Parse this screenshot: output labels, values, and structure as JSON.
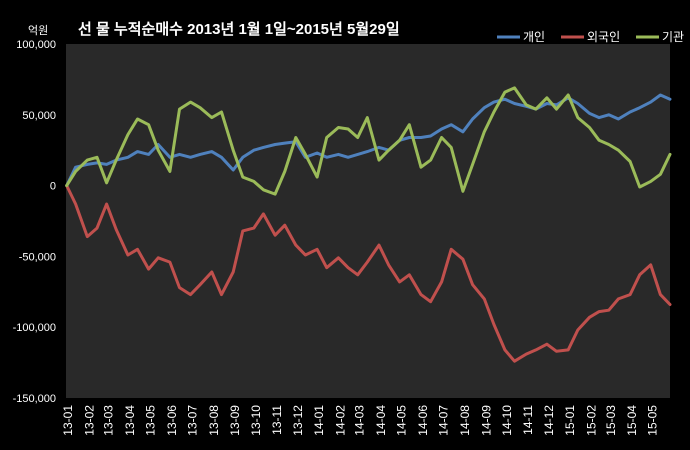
{
  "chart_data": {
    "type": "line",
    "title": "선 물 누적순매수 2013년 1월 1일~2015년 5월29일",
    "xlabel": "",
    "ylabel": "억원",
    "ylim": [
      -150000,
      100000
    ],
    "yticks": [
      100000,
      50000,
      0,
      -50000,
      -100000,
      -150000
    ],
    "ytick_labels": [
      "100,000",
      "50,000",
      "0",
      "-50,000",
      "-100,000",
      "-150,000"
    ],
    "xlim": [
      "2013-01-01",
      "2015-05-29"
    ],
    "xtick_labels": [
      "13-01",
      "13-02",
      "13-03",
      "13-04",
      "13-05",
      "13-06",
      "13-07",
      "13-08",
      "13-09",
      "13-10",
      "13-11",
      "13-12",
      "14-01",
      "14-02",
      "14-03",
      "14-04",
      "14-05",
      "14-06",
      "14-07",
      "14-08",
      "14-09",
      "14-10",
      "14-11",
      "14-12",
      "15-01",
      "15-02",
      "15-03",
      "15-04",
      "15-05"
    ],
    "grid": false,
    "legend_position": "top-right",
    "x": [
      "2013-01-02",
      "2013-01-15",
      "2013-02-01",
      "2013-02-15",
      "2013-03-01",
      "2013-03-15",
      "2013-04-01",
      "2013-04-15",
      "2013-05-01",
      "2013-05-15",
      "2013-06-01",
      "2013-06-15",
      "2013-07-01",
      "2013-07-15",
      "2013-08-01",
      "2013-08-15",
      "2013-09-01",
      "2013-09-15",
      "2013-10-01",
      "2013-10-15",
      "2013-11-01",
      "2013-11-15",
      "2013-12-01",
      "2013-12-15",
      "2014-01-01",
      "2014-01-15",
      "2014-02-01",
      "2014-02-15",
      "2014-03-01",
      "2014-03-15",
      "2014-04-01",
      "2014-04-15",
      "2014-05-01",
      "2014-05-15",
      "2014-06-01",
      "2014-06-15",
      "2014-07-01",
      "2014-07-15",
      "2014-08-01",
      "2014-08-15",
      "2014-09-01",
      "2014-09-15",
      "2014-10-01",
      "2014-10-15",
      "2014-11-01",
      "2014-11-15",
      "2014-12-01",
      "2014-12-15",
      "2015-01-01",
      "2015-01-15",
      "2015-02-01",
      "2015-02-15",
      "2015-03-01",
      "2015-03-15",
      "2015-04-01",
      "2015-04-15",
      "2015-05-01",
      "2015-05-15",
      "2015-05-29"
    ],
    "series": [
      {
        "name": "개인",
        "color": "#4F81BD",
        "values": [
          0,
          13000,
          15000,
          16000,
          15000,
          18000,
          20000,
          24000,
          22000,
          29000,
          20000,
          22000,
          20000,
          22000,
          24000,
          20000,
          11000,
          20000,
          25000,
          27000,
          29000,
          30000,
          31000,
          20000,
          23000,
          20000,
          22000,
          20000,
          22000,
          24000,
          27000,
          25000,
          32000,
          34000,
          34000,
          35000,
          40000,
          43000,
          38000,
          47000,
          55000,
          59000,
          61000,
          58000,
          56000,
          54000,
          58000,
          57000,
          62000,
          58000,
          51000,
          48000,
          50000,
          47000,
          52000,
          55000,
          59000,
          64000,
          61000
        ]
      },
      {
        "name": "외국인",
        "color": "#C0504D",
        "values": [
          0,
          -13000,
          -36000,
          -30000,
          -13000,
          -31000,
          -49000,
          -45000,
          -59000,
          -51000,
          -54000,
          -72000,
          -77000,
          -70000,
          -61000,
          -77000,
          -61000,
          -32000,
          -30000,
          -20000,
          -35000,
          -28000,
          -42000,
          -49000,
          -45000,
          -58000,
          -51000,
          -58000,
          -63000,
          -54000,
          -42000,
          -56000,
          -68000,
          -63000,
          -77000,
          -82000,
          -68000,
          -45000,
          -52000,
          -70000,
          -80000,
          -98000,
          -116000,
          -124000,
          -119000,
          -116000,
          -112000,
          -117000,
          -116000,
          -102000,
          -93000,
          -89000,
          -88000,
          -80000,
          -77000,
          -63000,
          -56000,
          -77000,
          -84000
        ]
      },
      {
        "name": "기관",
        "color": "#9BBB59",
        "values": [
          0,
          10000,
          18000,
          20000,
          2000,
          18000,
          36000,
          47000,
          43000,
          25000,
          10000,
          54000,
          59000,
          55000,
          48000,
          52000,
          25000,
          6000,
          3000,
          -3000,
          -6000,
          10000,
          34000,
          22000,
          6000,
          34000,
          41000,
          40000,
          34000,
          48000,
          18000,
          25000,
          32000,
          43000,
          13000,
          18000,
          34000,
          27000,
          -4000,
          15000,
          38000,
          52000,
          66000,
          69000,
          57000,
          54000,
          62000,
          54000,
          64000,
          48000,
          41000,
          32000,
          29000,
          25000,
          17000,
          -1000,
          3000,
          8000,
          22000
        ]
      }
    ]
  }
}
